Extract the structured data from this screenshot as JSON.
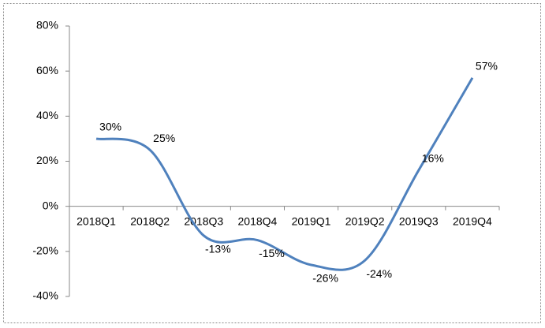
{
  "chart_data": {
    "type": "line",
    "categories": [
      "2018Q1",
      "2018Q2",
      "2018Q3",
      "2018Q4",
      "2019Q1",
      "2019Q2",
      "2019Q3",
      "2019Q4"
    ],
    "series": [
      {
        "color": "#4f81bd",
        "values": [
          30,
          25,
          -13,
          -15,
          -26,
          -24,
          16,
          57
        ],
        "value_labels": [
          "30%",
          "25%",
          "-13%",
          "-15%",
          "-26%",
          "-24%",
          "16%",
          "57%"
        ]
      }
    ],
    "ylim": [
      -40,
      80
    ],
    "yticks": [
      {
        "value": -40,
        "label": "-40%"
      },
      {
        "value": -20,
        "label": "-20%"
      },
      {
        "value": 0,
        "label": "0%"
      },
      {
        "value": 20,
        "label": "20%"
      },
      {
        "value": 40,
        "label": "40%"
      },
      {
        "value": 60,
        "label": "60%"
      },
      {
        "value": 80,
        "label": "80%"
      }
    ],
    "smooth": true
  }
}
